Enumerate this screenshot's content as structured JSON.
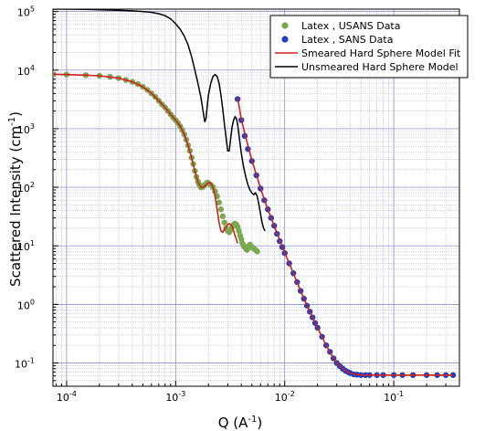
{
  "chart_data": {
    "type": "line",
    "title": "",
    "xlabel": {
      "base": "Q (A",
      "sup": "-1",
      "end": ")"
    },
    "ylabel": {
      "base": "Scattered Intensity (cm",
      "sup": "-1",
      "end": ")"
    },
    "x_scale": "log",
    "y_scale": "log",
    "xlim": [
      7.5e-05,
      0.4
    ],
    "ylim": [
      0.04,
      110000
    ],
    "grid": true,
    "legend_position": "top-right",
    "x_ticks": [
      {
        "value": 0.0001,
        "base": "10",
        "exp": "-4"
      },
      {
        "value": 0.001,
        "base": "10",
        "exp": "-3"
      },
      {
        "value": 0.01,
        "base": "10",
        "exp": "-2"
      },
      {
        "value": 0.1,
        "base": "10",
        "exp": "-1"
      }
    ],
    "y_ticks": [
      {
        "value": 0.1,
        "base": "10",
        "exp": "-1"
      },
      {
        "value": 1,
        "base": "10",
        "exp": "0"
      },
      {
        "value": 10,
        "base": "10",
        "exp": "1"
      },
      {
        "value": 100,
        "base": "10",
        "exp": "2"
      },
      {
        "value": 1000,
        "base": "10",
        "exp": "3"
      },
      {
        "value": 10000,
        "base": "10",
        "exp": "4"
      },
      {
        "value": 100000,
        "base": "10",
        "exp": "5"
      }
    ],
    "series": [
      {
        "name": "Latex , USANS Data",
        "kind": "scatter",
        "color": "#7aa84e",
        "x": [
          7.5e-05,
          0.0001,
          0.00015,
          0.0002,
          0.00025,
          0.0003,
          0.00035,
          0.0004,
          0.00045,
          0.0005,
          0.00055,
          0.0006,
          0.00065,
          0.0007,
          0.00075,
          0.0008,
          0.00085,
          0.0009,
          0.00095,
          0.001,
          0.00105,
          0.0011,
          0.00115,
          0.0012,
          0.00125,
          0.0013,
          0.00135,
          0.0014,
          0.00145,
          0.0015,
          0.00155,
          0.0016,
          0.00165,
          0.0017,
          0.00175,
          0.0018,
          0.00185,
          0.0019,
          0.00195,
          0.002,
          0.0021,
          0.0022,
          0.0023,
          0.0024,
          0.0025,
          0.0026,
          0.0027,
          0.0028,
          0.0029,
          0.003,
          0.0031,
          0.0032,
          0.0033,
          0.0034,
          0.0035,
          0.0036,
          0.0037,
          0.0038,
          0.0039,
          0.004,
          0.0041,
          0.0042,
          0.0043,
          0.0044,
          0.0045,
          0.0046,
          0.0047,
          0.0048,
          0.0049,
          0.005,
          0.0052,
          0.0054,
          0.0056
        ],
        "y": [
          8500,
          8400,
          8200,
          8000,
          7700,
          7300,
          6800,
          6300,
          5800,
          5200,
          4600,
          4000,
          3500,
          3000,
          2600,
          2300,
          2000,
          1750,
          1550,
          1400,
          1250,
          1100,
          950,
          800,
          650,
          520,
          420,
          320,
          250,
          190,
          150,
          125,
          110,
          100,
          100,
          105,
          110,
          115,
          120,
          118,
          110,
          100,
          85,
          70,
          55,
          42,
          32,
          25,
          20,
          18,
          17,
          19,
          21,
          23,
          24,
          23,
          21,
          18,
          15,
          13,
          11,
          10,
          9.5,
          9,
          8.5,
          9,
          10,
          10.5,
          10,
          9.5,
          9,
          8.5,
          8
        ]
      },
      {
        "name": "Latex , SANS Data",
        "kind": "scatter",
        "color": "#2040c0",
        "x": [
          0.0037,
          0.004,
          0.0043,
          0.0046,
          0.005,
          0.0055,
          0.006,
          0.0065,
          0.007,
          0.0075,
          0.008,
          0.0085,
          0.009,
          0.0095,
          0.01,
          0.011,
          0.012,
          0.013,
          0.014,
          0.015,
          0.016,
          0.017,
          0.018,
          0.019,
          0.02,
          0.022,
          0.024,
          0.026,
          0.028,
          0.03,
          0.032,
          0.034,
          0.036,
          0.038,
          0.04,
          0.043,
          0.046,
          0.05,
          0.055,
          0.06,
          0.07,
          0.08,
          0.1,
          0.12,
          0.15,
          0.2,
          0.25,
          0.3,
          0.35
        ],
        "y": [
          3200,
          1400,
          750,
          450,
          280,
          160,
          95,
          60,
          42,
          30,
          22,
          16,
          12,
          9.5,
          7.5,
          5,
          3.4,
          2.4,
          1.7,
          1.25,
          0.95,
          0.75,
          0.6,
          0.48,
          0.4,
          0.28,
          0.2,
          0.155,
          0.12,
          0.1,
          0.088,
          0.08,
          0.074,
          0.07,
          0.067,
          0.064,
          0.063,
          0.062,
          0.062,
          0.062,
          0.062,
          0.062,
          0.062,
          0.062,
          0.062,
          0.062,
          0.062,
          0.062,
          0.062
        ]
      },
      {
        "name": "Smeared Hard Sphere Model Fit",
        "kind": "line",
        "color": "#d02020",
        "x": [
          7.5e-05,
          0.0001,
          0.00015,
          0.0002,
          0.0003,
          0.0004,
          0.0005,
          0.0006,
          0.0007,
          0.0008,
          0.0009,
          0.001,
          0.0011,
          0.0012,
          0.0013,
          0.0014,
          0.0015,
          0.0016,
          0.0017,
          0.0018,
          0.0019,
          0.002,
          0.0021,
          0.0022,
          0.0023,
          0.0024,
          0.0025,
          0.0026,
          0.0027,
          0.0028,
          0.0029,
          0.003,
          0.0031,
          0.0032,
          0.0033,
          0.0034,
          0.0035,
          0.0036,
          0.0037
        ],
        "y": [
          8500,
          8400,
          8200,
          8000,
          7300,
          6300,
          5200,
          4000,
          3000,
          2300,
          1750,
          1400,
          1100,
          800,
          520,
          320,
          190,
          125,
          100,
          100,
          110,
          120,
          118,
          100,
          70,
          42,
          25,
          18,
          17,
          19,
          21,
          23,
          24,
          23,
          21,
          18,
          15,
          13,
          11
        ]
      },
      {
        "name": "Smeared Hard Sphere Model Fit",
        "kind": "line",
        "color": "#d02020",
        "legend": false,
        "x": [
          0.0037,
          0.004,
          0.0045,
          0.005,
          0.006,
          0.007,
          0.008,
          0.009,
          0.01,
          0.012,
          0.014,
          0.016,
          0.018,
          0.02,
          0.024,
          0.028,
          0.032,
          0.036,
          0.04,
          0.046,
          0.055,
          0.07,
          0.1,
          0.15,
          0.2,
          0.3,
          0.35
        ],
        "y": [
          3400,
          1450,
          600,
          290,
          96,
          42,
          22,
          12.5,
          7.6,
          3.4,
          1.7,
          0.96,
          0.6,
          0.4,
          0.2,
          0.12,
          0.088,
          0.074,
          0.067,
          0.063,
          0.062,
          0.062,
          0.062,
          0.062,
          0.062,
          0.062,
          0.062
        ]
      },
      {
        "name": "Unsmeared Hard Sphere Model",
        "kind": "line",
        "color": "#000000",
        "x": [
          7.5e-05,
          0.0001,
          0.00015,
          0.0002,
          0.0003,
          0.0004,
          0.0005,
          0.0006,
          0.0007,
          0.0008,
          0.0009,
          0.001,
          0.0011,
          0.0012,
          0.0013,
          0.0014,
          0.0015,
          0.0016,
          0.0017,
          0.0018,
          0.00185,
          0.0019,
          0.00195,
          0.002,
          0.0021,
          0.0022,
          0.0023,
          0.0024,
          0.0025,
          0.0026,
          0.0027,
          0.0028,
          0.0029,
          0.003,
          0.0031,
          0.0032,
          0.0033,
          0.0034,
          0.0035,
          0.0036,
          0.0037,
          0.0038,
          0.0039,
          0.004,
          0.0042,
          0.0044,
          0.0046,
          0.0048,
          0.005,
          0.0052,
          0.0054,
          0.0056,
          0.0058,
          0.006,
          0.0062,
          0.0064,
          0.0066
        ],
        "y": [
          110000,
          110000,
          109000,
          107000,
          105000,
          103000,
          100000,
          97000,
          92000,
          85000,
          75000,
          62000,
          50000,
          38000,
          27000,
          17000,
          10000,
          6000,
          3500,
          1800,
          1300,
          1500,
          2500,
          3800,
          6000,
          7800,
          8400,
          7800,
          6000,
          3800,
          2200,
          1200,
          700,
          420,
          420,
          700,
          1100,
          1400,
          1600,
          1500,
          1200,
          800,
          550,
          380,
          220,
          150,
          110,
          90,
          80,
          75,
          80,
          70,
          50,
          35,
          25,
          20,
          18
        ]
      }
    ]
  }
}
